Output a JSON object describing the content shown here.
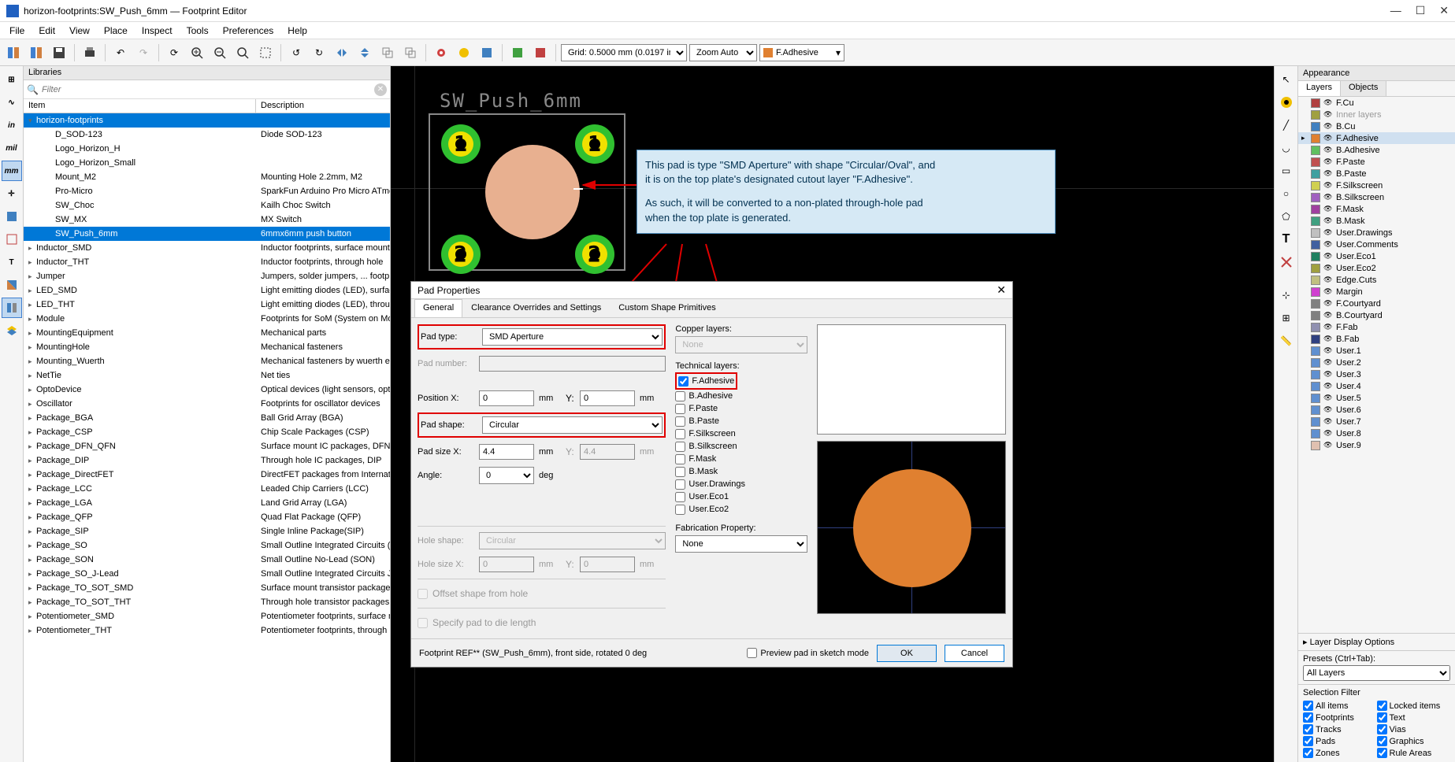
{
  "window": {
    "title": "horizon-footprints:SW_Push_6mm — Footprint Editor"
  },
  "menu": [
    "File",
    "Edit",
    "View",
    "Place",
    "Inspect",
    "Tools",
    "Preferences",
    "Help"
  ],
  "toolbar": {
    "grid_label": "Grid: 0.5000 mm (0.0197 in)",
    "zoom_label": "Zoom Auto",
    "layer_label": "F.Adhesive",
    "layer_color": "#e08030"
  },
  "libraries": {
    "header": "Libraries",
    "filter_placeholder": "Filter",
    "col_item": "Item",
    "col_desc": "Description",
    "rows": [
      {
        "indent": 0,
        "exp": "▾",
        "label": "horizon-footprints",
        "desc": "",
        "sel": true
      },
      {
        "indent": 1,
        "exp": "",
        "label": "D_SOD-123",
        "desc": "Diode SOD-123"
      },
      {
        "indent": 1,
        "exp": "",
        "label": "Logo_Horizon_H",
        "desc": ""
      },
      {
        "indent": 1,
        "exp": "",
        "label": "Logo_Horizon_Small",
        "desc": ""
      },
      {
        "indent": 1,
        "exp": "",
        "label": "Mount_M2",
        "desc": "Mounting Hole 2.2mm, M2"
      },
      {
        "indent": 1,
        "exp": "",
        "label": "Pro-Micro",
        "desc": "SparkFun Arduino Pro Micro ATme"
      },
      {
        "indent": 1,
        "exp": "",
        "label": "SW_Choc",
        "desc": "Kailh Choc Switch"
      },
      {
        "indent": 1,
        "exp": "",
        "label": "SW_MX",
        "desc": "MX Switch"
      },
      {
        "indent": 1,
        "exp": "",
        "label": "SW_Push_6mm",
        "desc": "6mmx6mm push button",
        "sel": true
      },
      {
        "indent": 0,
        "exp": "▸",
        "label": "Inductor_SMD",
        "desc": "Inductor footprints, surface mount"
      },
      {
        "indent": 0,
        "exp": "▸",
        "label": "Inductor_THT",
        "desc": "Inductor footprints, through hole"
      },
      {
        "indent": 0,
        "exp": "▸",
        "label": "Jumper",
        "desc": "Jumpers, solder jumpers, ... footprin"
      },
      {
        "indent": 0,
        "exp": "▸",
        "label": "LED_SMD",
        "desc": "Light emitting diodes (LED), surfac"
      },
      {
        "indent": 0,
        "exp": "▸",
        "label": "LED_THT",
        "desc": "Light emitting diodes (LED), throug"
      },
      {
        "indent": 0,
        "exp": "▸",
        "label": "Module",
        "desc": "Footprints for SoM (System on Mo"
      },
      {
        "indent": 0,
        "exp": "▸",
        "label": "MountingEquipment",
        "desc": "Mechanical parts"
      },
      {
        "indent": 0,
        "exp": "▸",
        "label": "MountingHole",
        "desc": "Mechanical fasteners"
      },
      {
        "indent": 0,
        "exp": "▸",
        "label": "Mounting_Wuerth",
        "desc": "Mechanical fasteners by wuerth ele"
      },
      {
        "indent": 0,
        "exp": "▸",
        "label": "NetTie",
        "desc": "Net ties"
      },
      {
        "indent": 0,
        "exp": "▸",
        "label": "OptoDevice",
        "desc": "Optical devices (light sensors, opto"
      },
      {
        "indent": 0,
        "exp": "▸",
        "label": "Oscillator",
        "desc": "Footprints for oscillator devices"
      },
      {
        "indent": 0,
        "exp": "▸",
        "label": "Package_BGA",
        "desc": "Ball Grid Array (BGA)"
      },
      {
        "indent": 0,
        "exp": "▸",
        "label": "Package_CSP",
        "desc": "Chip Scale Packages (CSP)"
      },
      {
        "indent": 0,
        "exp": "▸",
        "label": "Package_DFN_QFN",
        "desc": "Surface mount IC packages, DFN /"
      },
      {
        "indent": 0,
        "exp": "▸",
        "label": "Package_DIP",
        "desc": "Through hole IC packages, DIP"
      },
      {
        "indent": 0,
        "exp": "▸",
        "label": "Package_DirectFET",
        "desc": "DirectFET packages from Internatio"
      },
      {
        "indent": 0,
        "exp": "▸",
        "label": "Package_LCC",
        "desc": "Leaded Chip Carriers (LCC)"
      },
      {
        "indent": 0,
        "exp": "▸",
        "label": "Package_LGA",
        "desc": "Land Grid Array (LGA)"
      },
      {
        "indent": 0,
        "exp": "▸",
        "label": "Package_QFP",
        "desc": "Quad Flat Package (QFP)"
      },
      {
        "indent": 0,
        "exp": "▸",
        "label": "Package_SIP",
        "desc": "Single Inline Package(SIP)"
      },
      {
        "indent": 0,
        "exp": "▸",
        "label": "Package_SO",
        "desc": "Small Outline Integrated Circuits (S"
      },
      {
        "indent": 0,
        "exp": "▸",
        "label": "Package_SON",
        "desc": "Small Outline No-Lead (SON)"
      },
      {
        "indent": 0,
        "exp": "▸",
        "label": "Package_SO_J-Lead",
        "desc": "Small Outline Integrated Circuits J-"
      },
      {
        "indent": 0,
        "exp": "▸",
        "label": "Package_TO_SOT_SMD",
        "desc": "Surface mount transistor packages"
      },
      {
        "indent": 0,
        "exp": "▸",
        "label": "Package_TO_SOT_THT",
        "desc": "Through hole transistor packages"
      },
      {
        "indent": 0,
        "exp": "▸",
        "label": "Potentiometer_SMD",
        "desc": "Potentiometer footprints, surface m"
      },
      {
        "indent": 0,
        "exp": "▸",
        "label": "Potentiometer_THT",
        "desc": "Potentiometer footprints, through h"
      }
    ]
  },
  "canvas": {
    "footprint_name": "SW_Push_6mm",
    "center_color": "#e8b090",
    "pad_outer_color": "#30c030",
    "pad_inner_color": "#f0e000",
    "pad_nums": [
      "1",
      "1",
      "2",
      "2"
    ]
  },
  "callout": {
    "line1": "This pad is type \"SMD Aperture\" with shape \"Circular/Oval\", and",
    "line2": "it is on the top plate's designated cutout layer \"F.Adhesive\".",
    "line3": "As such, it will be converted to a non-plated through-hole pad",
    "line4": "when the top plate is generated."
  },
  "dialog": {
    "title": "Pad Properties",
    "tabs": [
      "General",
      "Clearance Overrides and Settings",
      "Custom Shape Primitives"
    ],
    "pad_type_label": "Pad type:",
    "pad_type_value": "SMD Aperture",
    "pad_number_label": "Pad number:",
    "pos_x_label": "Position X:",
    "pos_x_value": "0",
    "pos_y_label": "Y:",
    "pos_y_value": "0",
    "pad_shape_label": "Pad shape:",
    "pad_shape_value": "Circular",
    "pad_size_x_label": "Pad size X:",
    "pad_size_x_value": "4.4",
    "pad_size_y_label": "Y:",
    "pad_size_y_value": "4.4",
    "angle_label": "Angle:",
    "angle_value": "0",
    "hole_shape_label": "Hole shape:",
    "hole_shape_value": "Circular",
    "hole_size_x_label": "Hole size X:",
    "hole_size_x_value": "0",
    "hole_size_y_value": "0",
    "offset_label": "Offset shape from hole",
    "die_label": "Specify pad to die length",
    "mm": "mm",
    "deg": "deg",
    "copper_layers_label": "Copper layers:",
    "copper_layers_value": "None",
    "tech_layers_label": "Technical layers:",
    "tech_layers": [
      {
        "label": "F.Adhesive",
        "checked": true
      },
      {
        "label": "B.Adhesive",
        "checked": false
      },
      {
        "label": "F.Paste",
        "checked": false
      },
      {
        "label": "B.Paste",
        "checked": false
      },
      {
        "label": "F.Silkscreen",
        "checked": false
      },
      {
        "label": "B.Silkscreen",
        "checked": false
      },
      {
        "label": "F.Mask",
        "checked": false
      },
      {
        "label": "B.Mask",
        "checked": false
      },
      {
        "label": "User.Drawings",
        "checked": false
      },
      {
        "label": "User.Eco1",
        "checked": false
      },
      {
        "label": "User.Eco2",
        "checked": false
      }
    ],
    "fab_prop_label": "Fabrication Property:",
    "fab_prop_value": "None",
    "preview_sketch_label": "Preview pad in sketch mode",
    "footer_text": "Footprint REF** (SW_Push_6mm), front side, rotated 0 deg",
    "ok": "OK",
    "cancel": "Cancel",
    "preview_color": "#e08030"
  },
  "appearance": {
    "header": "Appearance",
    "tab_layers": "Layers",
    "tab_objects": "Objects",
    "layers": [
      {
        "c": "#b04040",
        "n": "F.Cu"
      },
      {
        "c": "#a0a040",
        "n": "Inner layers",
        "dim": true
      },
      {
        "c": "#4080c0",
        "n": "B.Cu"
      },
      {
        "c": "#e08030",
        "n": "F.Adhesive",
        "sel": true
      },
      {
        "c": "#60c060",
        "n": "B.Adhesive"
      },
      {
        "c": "#c05050",
        "n": "F.Paste"
      },
      {
        "c": "#40a0a0",
        "n": "B.Paste"
      },
      {
        "c": "#d0d050",
        "n": "F.Silkscreen"
      },
      {
        "c": "#a060c0",
        "n": "B.Silkscreen"
      },
      {
        "c": "#a040a0",
        "n": "F.Mask"
      },
      {
        "c": "#40a080",
        "n": "B.Mask"
      },
      {
        "c": "#c0c0c0",
        "n": "User.Drawings"
      },
      {
        "c": "#4060a0",
        "n": "User.Comments"
      },
      {
        "c": "#208060",
        "n": "User.Eco1"
      },
      {
        "c": "#a0a040",
        "n": "User.Eco2"
      },
      {
        "c": "#c0c080",
        "n": "Edge.Cuts"
      },
      {
        "c": "#d040d0",
        "n": "Margin"
      },
      {
        "c": "#808080",
        "n": "F.Courtyard"
      },
      {
        "c": "#808080",
        "n": "B.Courtyard"
      },
      {
        "c": "#9090b0",
        "n": "F.Fab"
      },
      {
        "c": "#304080",
        "n": "B.Fab"
      },
      {
        "c": "#6090d0",
        "n": "User.1"
      },
      {
        "c": "#6090d0",
        "n": "User.2"
      },
      {
        "c": "#6090d0",
        "n": "User.3"
      },
      {
        "c": "#6090d0",
        "n": "User.4"
      },
      {
        "c": "#6090d0",
        "n": "User.5"
      },
      {
        "c": "#6090d0",
        "n": "User.6"
      },
      {
        "c": "#6090d0",
        "n": "User.7"
      },
      {
        "c": "#6090d0",
        "n": "User.8"
      },
      {
        "c": "#e0c0b0",
        "n": "User.9"
      }
    ],
    "layer_display": "Layer Display Options",
    "presets_label": "Presets (Ctrl+Tab):",
    "presets_value": "All Layers",
    "sel_filter_label": "Selection Filter",
    "filters_left": [
      "All items",
      "Footprints",
      "Tracks",
      "Pads",
      "Zones"
    ],
    "filters_right": [
      "Locked items",
      "Text",
      "Vias",
      "Graphics",
      "Rule Areas"
    ]
  }
}
